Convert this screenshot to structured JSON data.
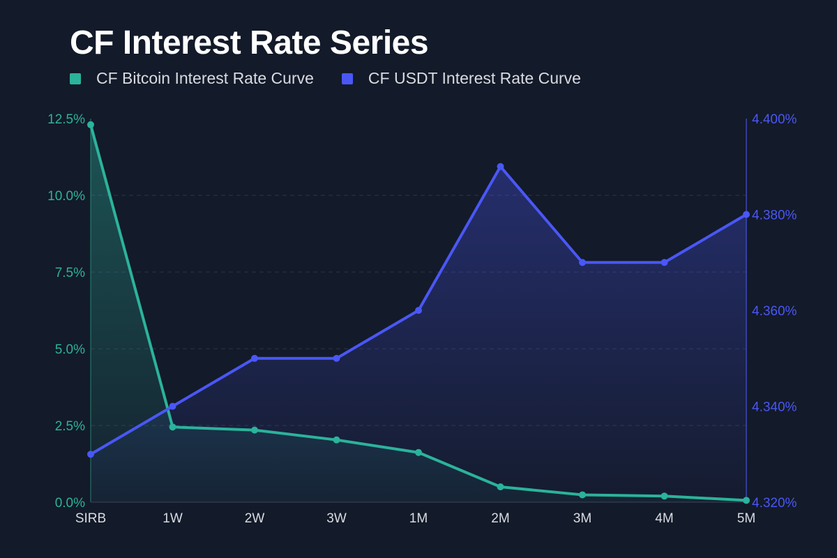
{
  "colors": {
    "background": "#131a29",
    "bitcoin": "#2bb39b",
    "usdt": "#4a57f5",
    "grid": "#2b3446",
    "axis_right": "#3c46b8"
  },
  "chart_data": {
    "type": "line",
    "title": "CF Interest Rate Series",
    "categories": [
      "SIRB",
      "1W",
      "2W",
      "3W",
      "1M",
      "2M",
      "3M",
      "4M",
      "5M"
    ],
    "series": [
      {
        "name": "CF Bitcoin Interest Rate Curve",
        "axis": "left",
        "values": [
          12.3,
          2.45,
          2.35,
          2.03,
          1.62,
          0.5,
          0.24,
          0.2,
          0.06
        ]
      },
      {
        "name": "CF USDT Interest Rate Curve",
        "axis": "right",
        "values": [
          4.33,
          4.34,
          4.35,
          4.35,
          4.36,
          4.39,
          4.37,
          4.37,
          4.38
        ]
      }
    ],
    "y_left": {
      "ylim": [
        0,
        12.5
      ],
      "ticks": [
        0,
        2.5,
        5,
        7.5,
        10,
        12.5
      ],
      "tick_labels": [
        "0.0%",
        "2.5%",
        "5.0%",
        "7.5%",
        "10.0%",
        "12.5%"
      ]
    },
    "y_right": {
      "ylim": [
        4.32,
        4.4
      ],
      "ticks": [
        4.32,
        4.34,
        4.36,
        4.38,
        4.4
      ],
      "tick_labels": [
        "4.320%",
        "4.340%",
        "4.360%",
        "4.380%",
        "4.400%"
      ]
    },
    "grid": true,
    "legend": "top-left"
  }
}
